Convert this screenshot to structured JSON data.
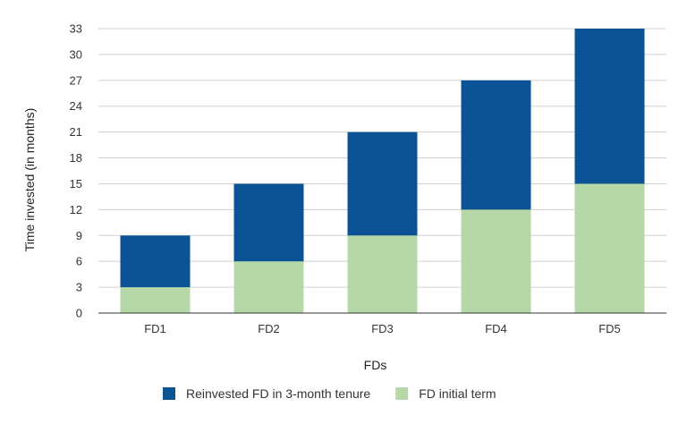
{
  "chart_data": {
    "type": "bar",
    "stacked": true,
    "categories": [
      "FD1",
      "FD2",
      "FD3",
      "FD4",
      "FD5"
    ],
    "series": [
      {
        "name": "FD initial term",
        "values": [
          3,
          6,
          9,
          12,
          15
        ],
        "color": "#b6d7a8"
      },
      {
        "name": "Reinvested FD in 3-month tenure",
        "values": [
          6,
          9,
          12,
          15,
          18
        ],
        "color": "#0b5394"
      }
    ],
    "legend_order": [
      "Reinvested FD in 3-month tenure",
      "FD initial term"
    ],
    "title": "",
    "xlabel": "FDs",
    "ylabel": "Time invested (in months)",
    "ylim": [
      0,
      33
    ],
    "yticks": [
      0,
      3,
      6,
      9,
      12,
      15,
      18,
      21,
      24,
      27,
      30,
      33
    ],
    "grid": true,
    "legend_position": "bottom"
  }
}
